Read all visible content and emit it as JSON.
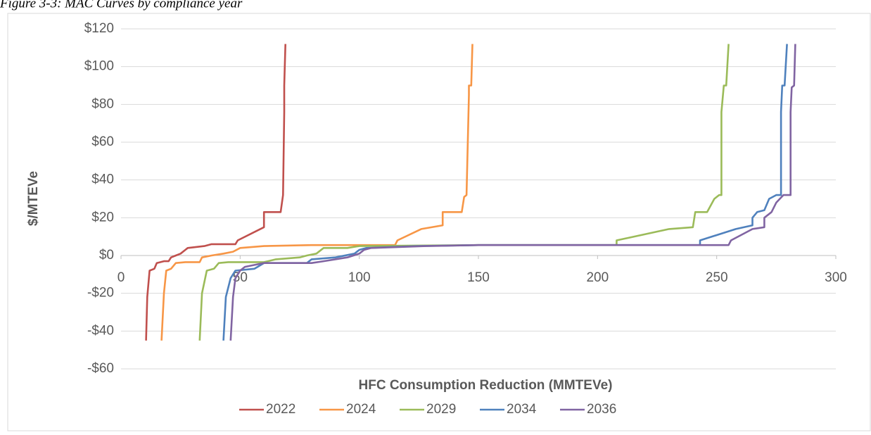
{
  "chart_data": {
    "type": "line",
    "title": "Figure 3-3: MAC Curves by compliance year",
    "x_label": "HFC Consumption Reduction (MMTEVe)",
    "y_label": "$/MTEVe",
    "xlim": [
      0,
      300
    ],
    "xticks": [
      0,
      50,
      100,
      150,
      200,
      250,
      300
    ],
    "ylim": [
      -60,
      120
    ],
    "yticks": [
      {
        "value": -60,
        "label": "-$60"
      },
      {
        "value": -40,
        "label": "-$40"
      },
      {
        "value": -20,
        "label": "-$20"
      },
      {
        "value": 0,
        "label": "$0"
      },
      {
        "value": 20,
        "label": "$20"
      },
      {
        "value": 40,
        "label": "$40"
      },
      {
        "value": 60,
        "label": "$60"
      },
      {
        "value": 80,
        "label": "$80"
      },
      {
        "value": 100,
        "label": "$100"
      },
      {
        "value": 120,
        "label": "$120"
      }
    ],
    "grid": true,
    "legend": "bottom",
    "series": [
      {
        "name": "2022",
        "color": "#c0504d",
        "x": [
          10.5,
          11,
          12,
          14,
          15,
          18,
          20,
          21,
          23,
          25,
          27,
          28,
          35,
          38,
          48,
          49,
          60,
          60,
          67,
          68,
          68.5,
          68.5,
          69
        ],
        "values": [
          -45,
          -22,
          -8,
          -7,
          -4,
          -3,
          -3,
          -1,
          0,
          1,
          3,
          4,
          5,
          6,
          6,
          8,
          15,
          23,
          23,
          32,
          76,
          90,
          112
        ]
      },
      {
        "name": "2024",
        "color": "#f79646",
        "x": [
          17,
          18,
          19,
          21,
          23,
          27,
          33,
          34,
          38,
          43,
          47,
          50,
          60,
          80,
          115,
          116,
          126,
          135,
          135,
          143,
          144,
          145,
          146,
          146,
          147,
          147.5
        ],
        "values": [
          -45,
          -20,
          -8,
          -7,
          -4,
          -3.5,
          -3.5,
          -1,
          0,
          1,
          2,
          4,
          5,
          5.5,
          5.5,
          8,
          14,
          16,
          23,
          23,
          31,
          32,
          85,
          90,
          90,
          112
        ]
      },
      {
        "name": "2029",
        "color": "#9bbb59",
        "x": [
          33,
          34,
          36,
          39,
          41,
          45,
          60,
          65,
          75,
          78,
          82,
          85,
          95,
          100,
          150,
          208,
          208,
          230,
          240,
          241,
          246,
          249,
          251,
          252,
          252,
          253,
          254,
          255
        ],
        "values": [
          -45,
          -20,
          -8,
          -7,
          -4,
          -3.5,
          -3.5,
          -2,
          -1,
          0,
          1,
          4,
          4,
          5,
          5.5,
          5.5,
          8,
          14,
          15,
          23,
          23,
          30,
          32,
          32,
          76,
          90,
          90,
          112
        ]
      },
      {
        "name": "2034",
        "color": "#4f81bd",
        "x": [
          43,
          44,
          46,
          48,
          56,
          60,
          78,
          80,
          90,
          98,
          100,
          103,
          125,
          150,
          243,
          243,
          258,
          265,
          265,
          267,
          270,
          272,
          275,
          277,
          277,
          277.5,
          278.5,
          279.5
        ],
        "values": [
          -45,
          -22,
          -12,
          -8,
          -7,
          -4,
          -4,
          -2,
          -1,
          1,
          3,
          4,
          5,
          5.5,
          5.5,
          8,
          14,
          16,
          20,
          23,
          24,
          30,
          32,
          32,
          76,
          90,
          90,
          112
        ]
      },
      {
        "name": "2036",
        "color": "#8064a2",
        "x": [
          46,
          47,
          48,
          50,
          52,
          56,
          60,
          80,
          85,
          95,
          100,
          102,
          105,
          128,
          150,
          255,
          256,
          265,
          270,
          270,
          273,
          275,
          278,
          281,
          281,
          281.5,
          282.5,
          283
        ],
        "values": [
          -45,
          -22,
          -12,
          -8,
          -6,
          -5,
          -4,
          -4,
          -3,
          -1,
          1,
          3,
          4,
          5,
          5.5,
          5.5,
          8,
          14,
          15,
          20,
          23,
          28,
          32,
          32,
          76,
          89,
          90,
          112
        ]
      }
    ]
  }
}
